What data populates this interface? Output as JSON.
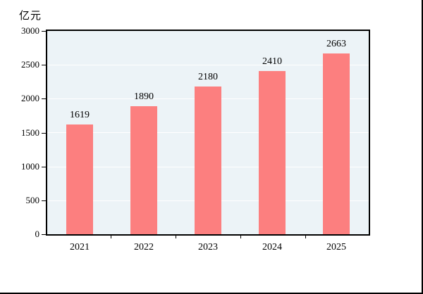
{
  "chart_data": {
    "type": "bar",
    "title": "",
    "unit_label": "亿元",
    "categories": [
      "2021",
      "2022",
      "2023",
      "2024",
      "2025"
    ],
    "values": [
      1619,
      1890,
      2180,
      2410,
      2663
    ],
    "xlabel": "",
    "ylabel": "亿元",
    "ylim": [
      0,
      3000
    ],
    "ytick_step": 500,
    "ytick_labels": [
      "0",
      "500",
      "1000",
      "1500",
      "2000",
      "2500",
      "3000"
    ],
    "grid": "horizontal",
    "legend_position": "none",
    "value_labels_shown": true,
    "colors": {
      "bar": "#FC7F7F",
      "plot_background": "#ECF3F7",
      "gridline": "#FFFFFF",
      "axis": "#000000",
      "text": "#000000",
      "page_background": "#FFFFFF"
    }
  }
}
